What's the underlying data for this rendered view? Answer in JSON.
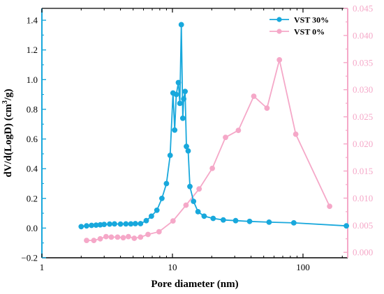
{
  "chart_data": {
    "type": "line",
    "xlabel": "Pore diameter (nm)",
    "ylabel_left": "dV/d(LogD) (cm³/g)",
    "ylabel_right": "",
    "x_scale": "log",
    "xlim": [
      1,
      220
    ],
    "xticks": [
      1,
      10,
      100
    ],
    "xtick_labels": [
      "1",
      "10",
      "100"
    ],
    "ylim_left": [
      -0.2,
      1.48
    ],
    "yticks_left": [
      -0.2,
      0.0,
      0.2,
      0.4,
      0.6,
      0.8,
      1.0,
      1.2,
      1.4
    ],
    "ytick_labels_left": [
      "−0.2",
      "0.0",
      "0.2",
      "0.4",
      "0.6",
      "0.8",
      "1.0",
      "1.2",
      "1.4"
    ],
    "ylim_right": [
      -0.001,
      0.045
    ],
    "yticks_right": [
      0.0,
      0.005,
      0.01,
      0.015,
      0.02,
      0.025,
      0.03,
      0.035,
      0.04,
      0.045
    ],
    "ytick_labels_right": [
      "0.000",
      "0.005",
      "0.010",
      "0.015",
      "0.020",
      "0.025",
      "0.030",
      "0.035",
      "0.040",
      "0.045"
    ],
    "grid": false,
    "legend_position": "top-right",
    "series": [
      {
        "name": "VST 30%",
        "axis": "left",
        "color": "#18a8dc",
        "x": [
          2.0,
          2.2,
          2.4,
          2.6,
          2.8,
          3.0,
          3.3,
          3.6,
          4.0,
          4.4,
          4.8,
          5.2,
          5.7,
          6.3,
          6.9,
          7.6,
          8.3,
          9.0,
          9.6,
          10.1,
          10.4,
          10.7,
          11.1,
          11.4,
          11.7,
          12.0,
          12.2,
          12.5,
          12.8,
          13.2,
          13.6,
          14.5,
          15.7,
          17.5,
          20.5,
          24.5,
          30.5,
          39,
          55,
          85,
          215
        ],
        "y": [
          0.01,
          0.015,
          0.018,
          0.02,
          0.022,
          0.025,
          0.027,
          0.028,
          0.027,
          0.028,
          0.028,
          0.03,
          0.03,
          0.05,
          0.08,
          0.12,
          0.2,
          0.3,
          0.49,
          0.91,
          0.66,
          0.9,
          0.98,
          0.84,
          1.37,
          0.74,
          0.87,
          0.92,
          0.55,
          0.52,
          0.28,
          0.18,
          0.11,
          0.08,
          0.065,
          0.055,
          0.05,
          0.045,
          0.04,
          0.035,
          0.015
        ]
      },
      {
        "name": "VST 0%",
        "axis": "right",
        "color": "#f5a8c8",
        "x": [
          2.2,
          2.5,
          2.8,
          3.1,
          3.4,
          3.8,
          4.2,
          4.6,
          5.1,
          5.7,
          6.5,
          7.9,
          10.1,
          12.7,
          16.0,
          20.2,
          25.5,
          32.0,
          42.0,
          53.0,
          66.0,
          88.0,
          160.0
        ],
        "y": [
          0.0022,
          0.0022,
          0.0025,
          0.0029,
          0.0028,
          0.0028,
          0.0027,
          0.0029,
          0.0026,
          0.0028,
          0.0033,
          0.0038,
          0.0058,
          0.0087,
          0.0117,
          0.0155,
          0.0212,
          0.0225,
          0.0288,
          0.0266,
          0.0355,
          0.0218,
          0.0085
        ]
      }
    ]
  }
}
